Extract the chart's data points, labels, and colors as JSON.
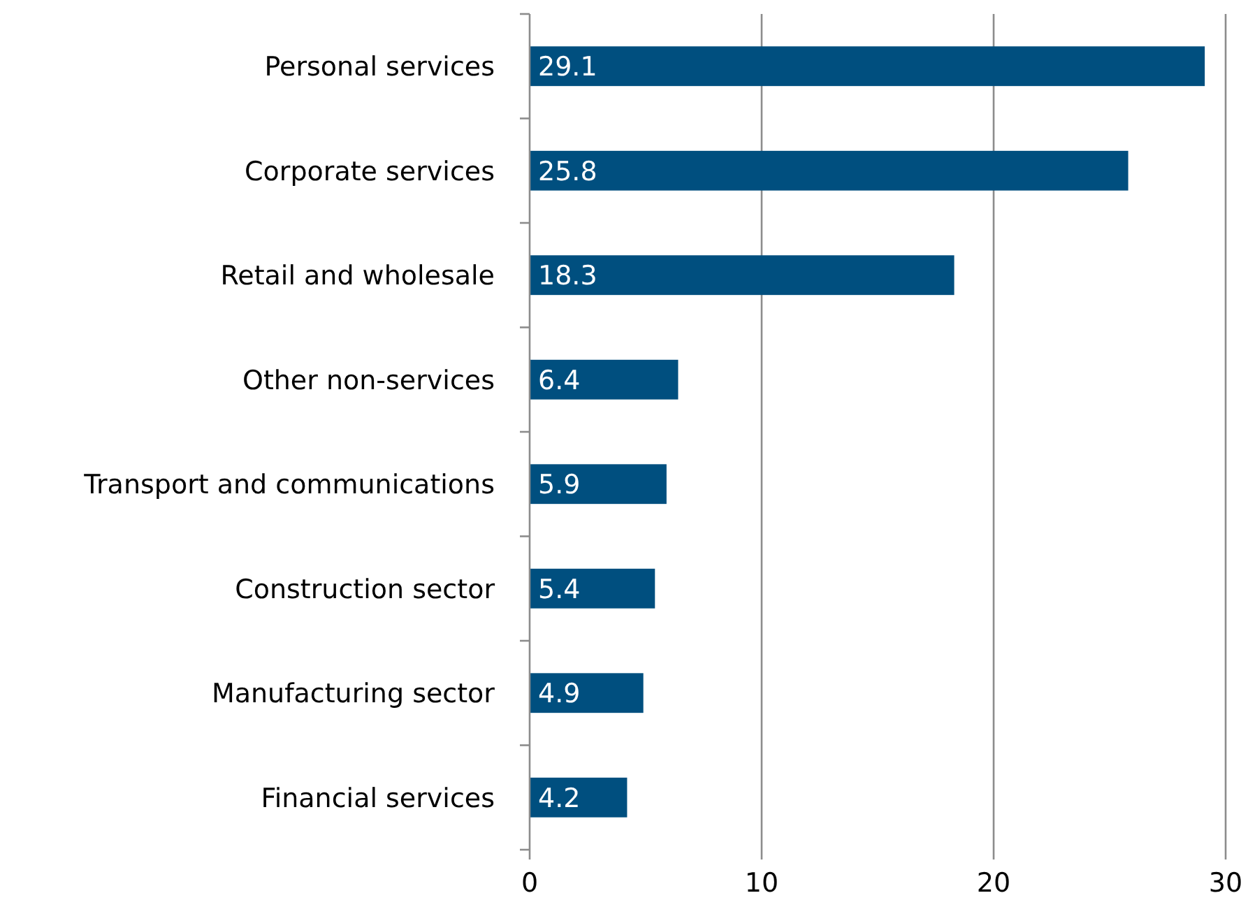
{
  "chart_data": {
    "type": "bar",
    "orientation": "horizontal",
    "categories": [
      "Personal services",
      "Corporate services",
      "Retail and wholesale",
      "Other non-services",
      "Transport and communications",
      "Construction sector",
      "Manufacturing sector",
      "Financial services"
    ],
    "values": [
      29.1,
      25.8,
      18.3,
      6.4,
      5.9,
      5.4,
      4.9,
      4.2
    ],
    "color": "#004f7f",
    "xlim": [
      0,
      30
    ],
    "xticks": [
      0,
      10,
      20,
      30
    ],
    "grid": "x",
    "data_labels": true
  }
}
